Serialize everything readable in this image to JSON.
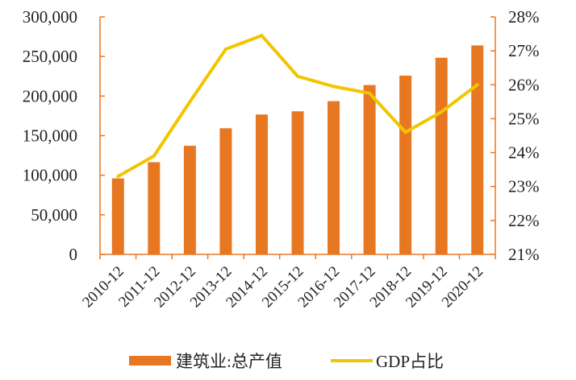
{
  "chart_data": {
    "type": "bar+line",
    "categories": [
      "2010-12",
      "2011-12",
      "2012-12",
      "2013-12",
      "2014-12",
      "2015-12",
      "2016-12",
      "2017-12",
      "2018-12",
      "2019-12",
      "2020-12"
    ],
    "series": [
      {
        "name": "建筑业:总产值",
        "type": "bar",
        "axis": "left",
        "color": "#E87722",
        "values": [
          96031,
          116463,
          137218,
          159313,
          176713,
          180757,
          193567,
          213954,
          225817,
          248446,
          263947
        ]
      },
      {
        "name": "GDP占比",
        "type": "line",
        "axis": "right",
        "color": "#F2C500",
        "values": [
          23.3,
          23.9,
          25.5,
          27.05,
          27.45,
          26.25,
          25.95,
          25.75,
          24.6,
          25.2,
          26.0
        ]
      }
    ],
    "left_axis": {
      "min": 0,
      "max": 300000,
      "ticks": [
        0,
        50000,
        100000,
        150000,
        200000,
        250000,
        300000
      ],
      "tick_labels": [
        "0",
        "50,000",
        "100,000",
        "150,000",
        "200,000",
        "250,000",
        "300,000"
      ]
    },
    "right_axis": {
      "min": 21,
      "max": 28,
      "ticks": [
        21,
        22,
        23,
        24,
        25,
        26,
        27,
        28
      ],
      "tick_labels": [
        "21%",
        "22%",
        "23%",
        "24%",
        "25%",
        "26%",
        "27%",
        "28%"
      ]
    },
    "axis_color": "#E87722",
    "grid": false,
    "legend": {
      "position": "bottom",
      "entries": [
        "建筑业:总产值",
        "GDP占比"
      ]
    }
  }
}
